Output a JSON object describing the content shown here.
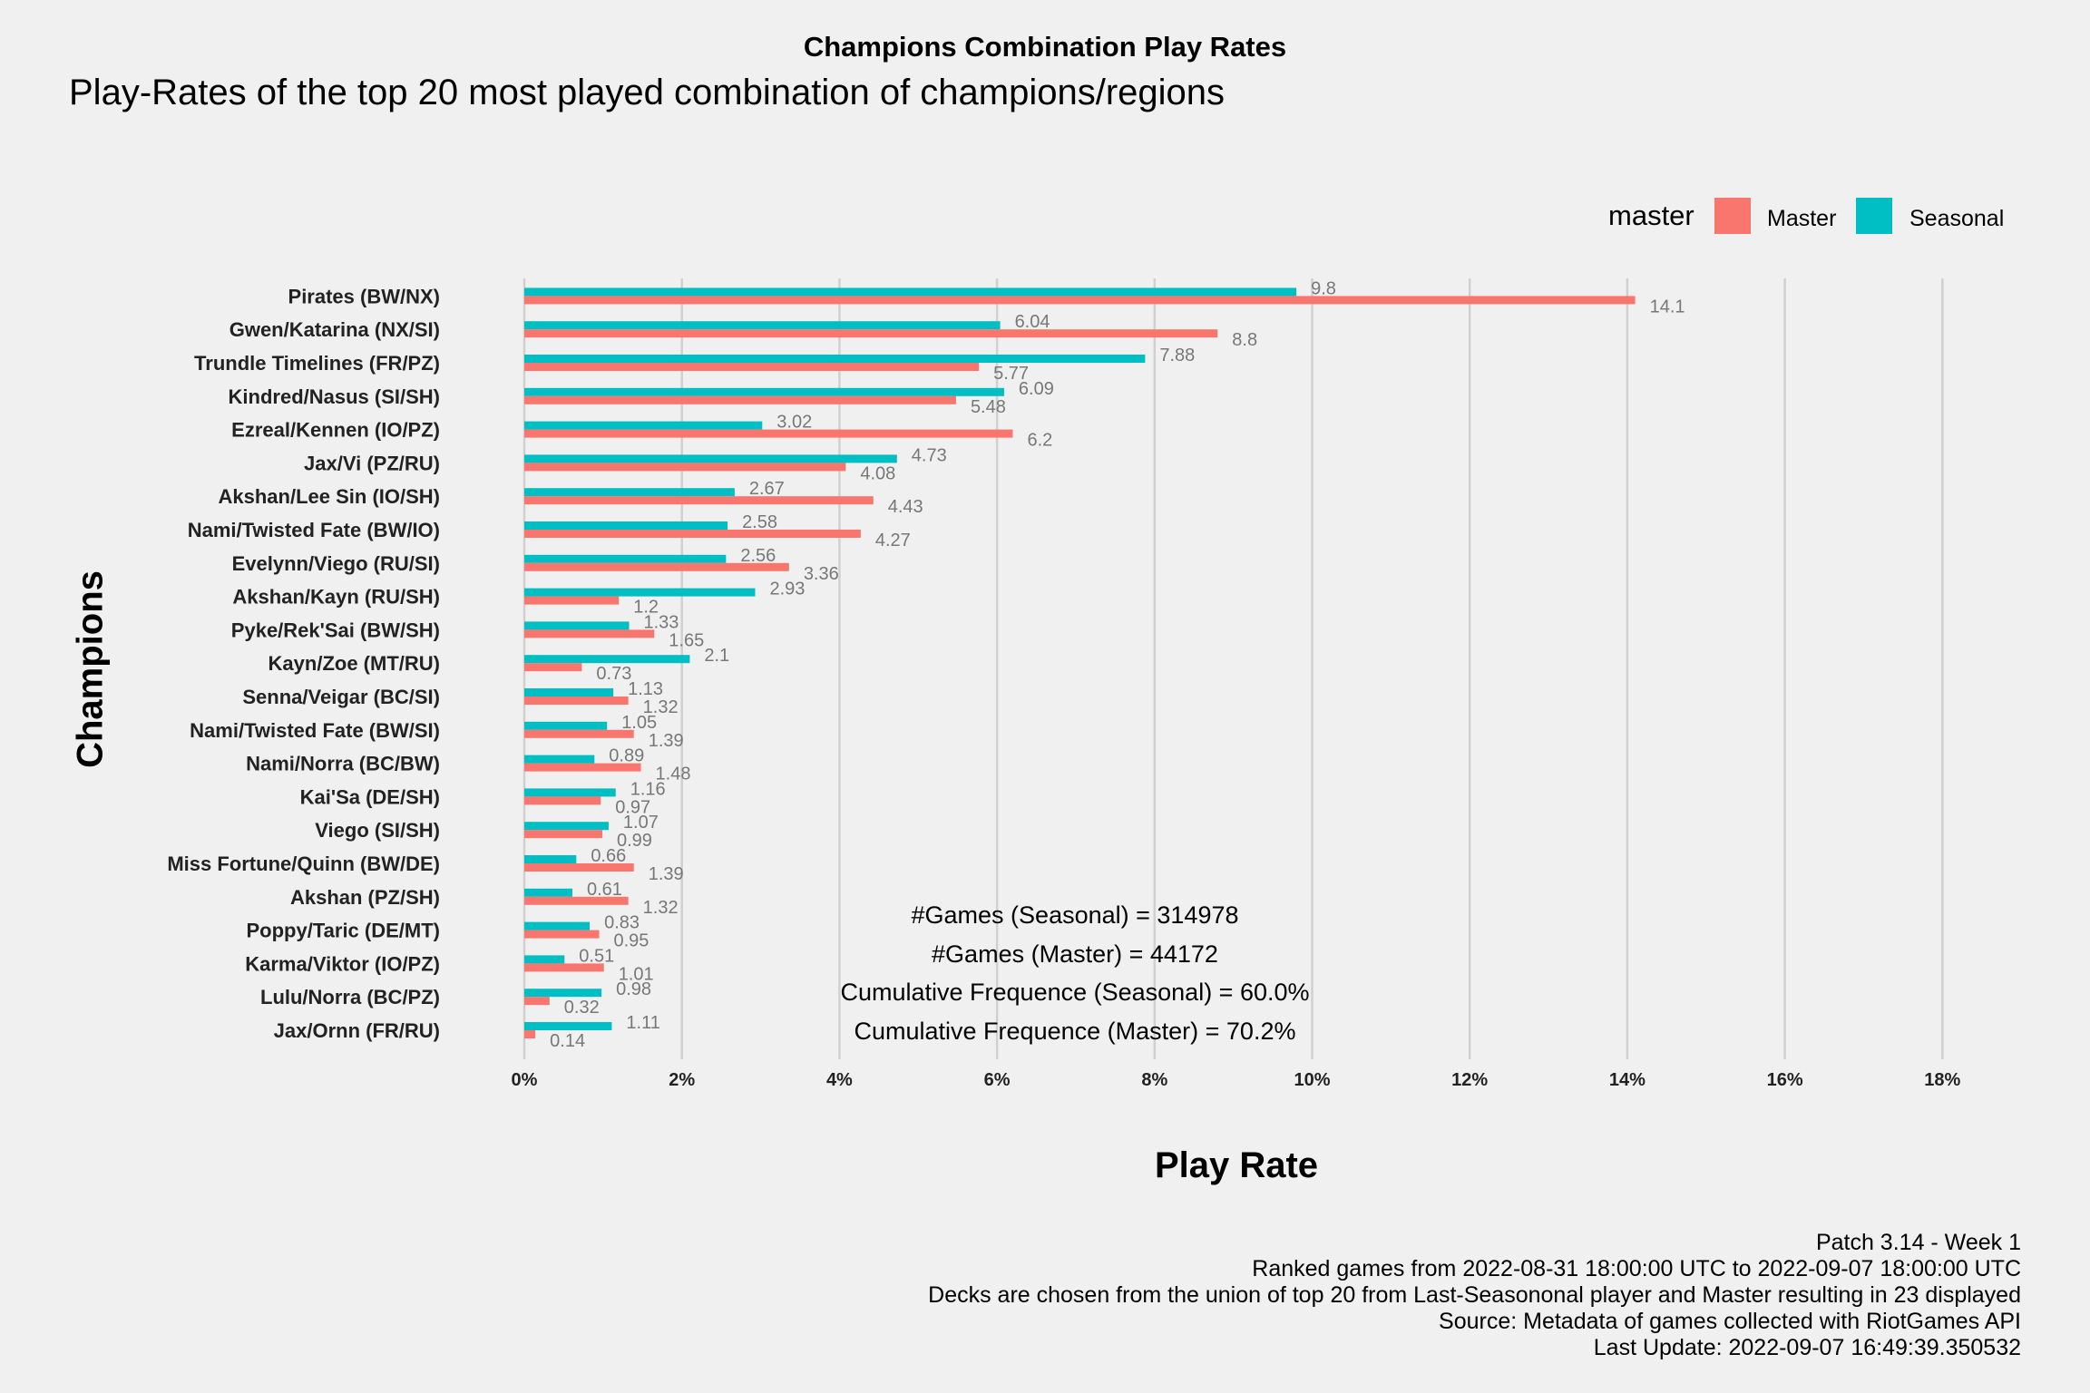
{
  "chart_data": {
    "type": "bar",
    "orientation": "horizontal",
    "title": "Champions Combination Play Rates",
    "subtitle": "Play-Rates of the top 20 most played combination of champions/regions",
    "xlabel": "Play Rate",
    "ylabel": "Champions",
    "xlim": [
      0,
      18
    ],
    "x_ticks": [
      "0%",
      "2%",
      "4%",
      "6%",
      "8%",
      "10%",
      "12%",
      "14%",
      "16%",
      "18%"
    ],
    "x_tick_values": [
      0,
      2,
      4,
      6,
      8,
      10,
      12,
      14,
      16,
      18
    ],
    "grid": "vertical major",
    "legend": {
      "title": "master",
      "position": "top-right"
    },
    "categories": [
      "Pirates (BW/NX)",
      "Gwen/Katarina (NX/SI)",
      "Trundle Timelines (FR/PZ)",
      "Kindred/Nasus (SI/SH)",
      "Ezreal/Kennen (IO/PZ)",
      "Jax/Vi (PZ/RU)",
      "Akshan/Lee Sin (IO/SH)",
      "Nami/Twisted Fate (BW/IO)",
      "Evelynn/Viego (RU/SI)",
      "Akshan/Kayn (RU/SH)",
      "Pyke/Rek'Sai (BW/SH)",
      "Kayn/Zoe (MT/RU)",
      "Senna/Veigar (BC/SI)",
      "Nami/Twisted Fate (BW/SI)",
      "Nami/Norra (BC/BW)",
      "Kai'Sa (DE/SH)",
      "Viego (SI/SH)",
      "Miss Fortune/Quinn (BW/DE)",
      "Akshan (PZ/SH)",
      "Poppy/Taric (DE/MT)",
      "Karma/Viktor (IO/PZ)",
      "Lulu/Norra (BC/PZ)",
      "Jax/Ornn (FR/RU)"
    ],
    "series": [
      {
        "name": "Master",
        "color": "#f8766d",
        "values": [
          14.1,
          8.8,
          5.77,
          5.48,
          6.2,
          4.08,
          4.43,
          4.27,
          3.36,
          1.2,
          1.65,
          0.73,
          1.32,
          1.39,
          1.48,
          0.97,
          0.99,
          1.39,
          1.32,
          0.95,
          1.01,
          0.32,
          0.14
        ],
        "labels": [
          "14.1",
          "8.8",
          "5.77",
          "5.48",
          "6.2",
          "4.08",
          "4.43",
          "4.27",
          "3.36",
          "1.2",
          "1.65",
          "0.73",
          "1.32",
          "1.39",
          "1.48",
          "0.97",
          "0.99",
          "1.39",
          "1.32",
          "0.95",
          "1.01",
          "0.32",
          "0.14"
        ]
      },
      {
        "name": "Seasonal",
        "color": "#00bfc4",
        "values": [
          9.8,
          6.04,
          7.88,
          6.09,
          3.02,
          4.73,
          2.67,
          2.58,
          2.56,
          2.93,
          1.33,
          2.1,
          1.13,
          1.05,
          0.89,
          1.16,
          1.07,
          0.66,
          0.61,
          0.83,
          0.51,
          0.98,
          1.11
        ],
        "labels": [
          "9.8",
          "6.04",
          "7.88",
          "6.09",
          "3.02",
          "4.73",
          "2.67",
          "2.58",
          "2.56",
          "2.93",
          "1.33",
          "2.1",
          "1.13",
          "1.05",
          "0.89",
          "1.16",
          "1.07",
          "0.66",
          "0.61",
          "0.83",
          "0.51",
          "0.98",
          "1.11"
        ]
      }
    ]
  },
  "annotations": [
    "#Games (Seasonal) = 314978",
    "#Games (Master) = 44172",
    "Cumulative Frequence (Seasonal) = 60.0%",
    "Cumulative Frequence (Master) = 70.2%"
  ],
  "caption": [
    "Patch 3.14 - Week 1",
    "Ranked games from 2022-08-31 18:00:00 UTC to 2022-09-07 18:00:00 UTC",
    "Decks are chosen from the union of top 20 from Last-Seasononal player and Master resulting in 23 displayed",
    "Source: Metadata of games collected with RiotGames API",
    "Last Update: 2022-09-07 16:49:39.350532"
  ],
  "legend_items": [
    {
      "label": "Master",
      "color": "#f8766d"
    },
    {
      "label": "Seasonal",
      "color": "#00bfc4"
    }
  ]
}
